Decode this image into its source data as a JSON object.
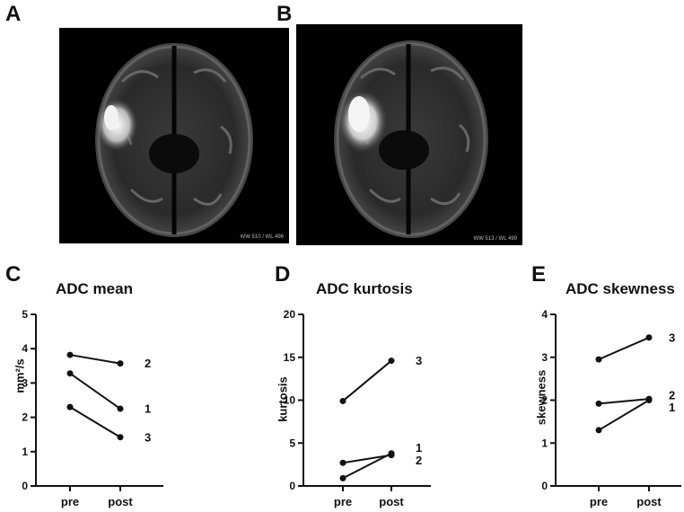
{
  "panels": {
    "A": {
      "letter": "A",
      "overlay": "WW 510 / WL 496"
    },
    "B": {
      "letter": "B",
      "overlay": "WW 513 / WL 499"
    }
  },
  "chart_data": [
    {
      "id": "C",
      "letter": "C",
      "type": "line",
      "title": "ADC mean",
      "ylabel": "mm²/s",
      "categories": [
        "pre",
        "post"
      ],
      "ylim": [
        0,
        5
      ],
      "yticks": [
        "0",
        "1",
        "2",
        "3",
        "4",
        "5"
      ],
      "series": [
        {
          "name": "1",
          "values": [
            3.28,
            2.25
          ]
        },
        {
          "name": "2",
          "values": [
            3.82,
            3.57
          ]
        },
        {
          "name": "3",
          "values": [
            2.3,
            1.42
          ]
        }
      ]
    },
    {
      "id": "D",
      "letter": "D",
      "type": "line",
      "title": "ADC kurtosis",
      "ylabel": "kurtosis",
      "categories": [
        "pre",
        "post"
      ],
      "ylim": [
        0,
        20
      ],
      "yticks": [
        "0",
        "5",
        "10",
        "15",
        "20"
      ],
      "series": [
        {
          "name": "1",
          "values": [
            0.9,
            3.8
          ]
        },
        {
          "name": "2",
          "values": [
            2.7,
            3.6
          ]
        },
        {
          "name": "3",
          "values": [
            9.9,
            14.6
          ]
        }
      ]
    },
    {
      "id": "E",
      "letter": "E",
      "type": "line",
      "title": "ADC skewness",
      "ylabel": "skewness",
      "categories": [
        "pre",
        "post"
      ],
      "ylim": [
        0,
        4
      ],
      "yticks": [
        "0",
        "1",
        "2",
        "3",
        "4"
      ],
      "series": [
        {
          "name": "1",
          "values": [
            1.3,
            2.0
          ]
        },
        {
          "name": "2",
          "values": [
            1.92,
            2.03
          ]
        },
        {
          "name": "3",
          "values": [
            2.95,
            3.46
          ]
        }
      ]
    }
  ]
}
